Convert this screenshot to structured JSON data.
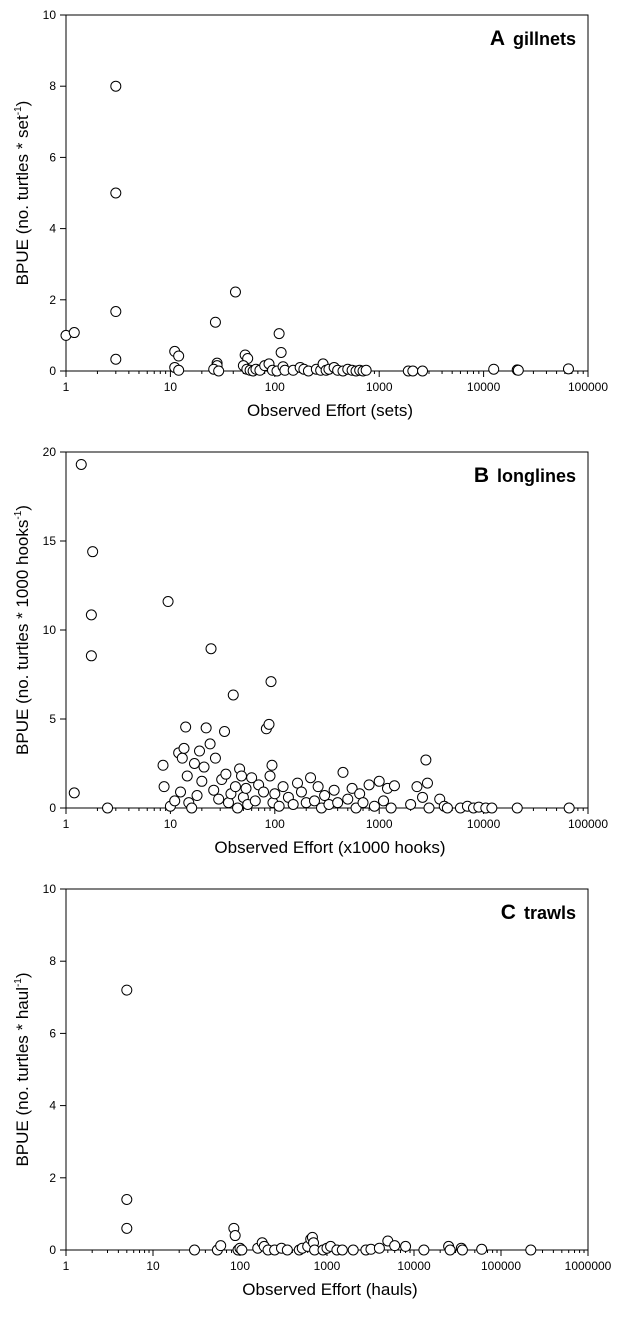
{
  "chart_data": [
    {
      "type": "scatter",
      "panel_label": "A",
      "title": "gillnets",
      "xlabel": "Observed Effort (sets)",
      "ylabel": "BPUE (no. turtles * set",
      "ylabel_superscript": "-1",
      "ylabel_close": ")",
      "x_scale": "log",
      "xlim": [
        1,
        100000
      ],
      "ylim": [
        0,
        10
      ],
      "x_ticks": [
        1,
        10,
        100,
        1000,
        10000,
        100000
      ],
      "x_tick_labels": [
        "1",
        "10",
        "100",
        "1000",
        "10000",
        "100000"
      ],
      "y_ticks": [
        0,
        2,
        4,
        6,
        8,
        10
      ],
      "y_tick_labels": [
        "0",
        "2",
        "4",
        "6",
        "8",
        "10"
      ],
      "grid": false,
      "legend": "none",
      "points": [
        [
          1,
          1.0
        ],
        [
          1.2,
          1.08
        ],
        [
          3,
          8.0
        ],
        [
          3,
          5.0
        ],
        [
          3,
          1.67
        ],
        [
          3,
          0.33
        ],
        [
          11,
          0.55
        ],
        [
          12,
          0.42
        ],
        [
          11,
          0.1
        ],
        [
          12,
          0.02
        ],
        [
          27,
          1.37
        ],
        [
          28,
          0.22
        ],
        [
          28,
          0.15
        ],
        [
          26,
          0.05
        ],
        [
          29,
          0.0
        ],
        [
          42,
          2.22
        ],
        [
          52,
          0.45
        ],
        [
          55,
          0.35
        ],
        [
          50,
          0.15
        ],
        [
          54,
          0.05
        ],
        [
          58,
          0.02
        ],
        [
          62,
          0.0
        ],
        [
          66,
          0.05
        ],
        [
          72,
          0.02
        ],
        [
          80,
          0.15
        ],
        [
          88,
          0.2
        ],
        [
          95,
          0.02
        ],
        [
          105,
          0.0
        ],
        [
          110,
          1.05
        ],
        [
          115,
          0.52
        ],
        [
          120,
          0.12
        ],
        [
          125,
          0.02
        ],
        [
          150,
          0.02
        ],
        [
          175,
          0.1
        ],
        [
          190,
          0.05
        ],
        [
          210,
          0.0
        ],
        [
          250,
          0.05
        ],
        [
          275,
          0.02
        ],
        [
          290,
          0.2
        ],
        [
          310,
          0.02
        ],
        [
          330,
          0.05
        ],
        [
          370,
          0.1
        ],
        [
          400,
          0.02
        ],
        [
          450,
          0.0
        ],
        [
          500,
          0.05
        ],
        [
          550,
          0.02
        ],
        [
          600,
          0.0
        ],
        [
          650,
          0.02
        ],
        [
          700,
          0.0
        ],
        [
          750,
          0.02
        ],
        [
          1900,
          0.0
        ],
        [
          2100,
          0.0
        ],
        [
          2600,
          0.0
        ],
        [
          12500,
          0.05
        ],
        [
          21000,
          0.03
        ],
        [
          21500,
          0.02
        ],
        [
          65000,
          0.06
        ]
      ]
    },
    {
      "type": "scatter",
      "panel_label": "B",
      "title": "longlines",
      "xlabel": "Observed Effort (x1000 hooks)",
      "ylabel": "BPUE (no. turtles * 1000 hooks",
      "ylabel_superscript": "-1",
      "ylabel_close": ")",
      "x_scale": "log",
      "xlim": [
        1,
        100000
      ],
      "ylim": [
        0,
        20
      ],
      "x_ticks": [
        1,
        10,
        100,
        1000,
        10000,
        100000
      ],
      "x_tick_labels": [
        "1",
        "10",
        "100",
        "1000",
        "10000",
        "100000"
      ],
      "y_ticks": [
        0,
        5,
        10,
        15,
        20
      ],
      "y_tick_labels": [
        "0",
        "5",
        "10",
        "15",
        "20"
      ],
      "grid": false,
      "legend": "none",
      "points": [
        [
          1.2,
          0.85
        ],
        [
          1.4,
          19.3
        ],
        [
          1.8,
          14.4
        ],
        [
          1.75,
          10.85
        ],
        [
          1.75,
          8.55
        ],
        [
          2.5,
          0.0
        ],
        [
          8.5,
          2.4
        ],
        [
          8.7,
          1.2
        ],
        [
          9.5,
          11.6
        ],
        [
          10,
          0.1
        ],
        [
          11,
          0.4
        ],
        [
          12,
          3.1
        ],
        [
          12.5,
          0.9
        ],
        [
          13,
          2.8
        ],
        [
          13.5,
          3.35
        ],
        [
          14,
          4.55
        ],
        [
          14.5,
          1.8
        ],
        [
          15,
          0.3
        ],
        [
          16,
          0.0
        ],
        [
          17,
          2.5
        ],
        [
          18,
          0.7
        ],
        [
          19,
          3.2
        ],
        [
          20,
          1.5
        ],
        [
          21,
          2.3
        ],
        [
          22,
          4.5
        ],
        [
          24,
          3.6
        ],
        [
          24.5,
          8.95
        ],
        [
          26,
          1.0
        ],
        [
          27,
          2.8
        ],
        [
          29,
          0.5
        ],
        [
          31,
          1.6
        ],
        [
          33,
          4.3
        ],
        [
          34,
          1.9
        ],
        [
          36,
          0.3
        ],
        [
          38,
          0.8
        ],
        [
          40,
          6.35
        ],
        [
          42,
          1.2
        ],
        [
          44,
          0.0
        ],
        [
          46,
          2.2
        ],
        [
          48,
          1.8
        ],
        [
          50,
          0.6
        ],
        [
          53,
          1.1
        ],
        [
          55,
          0.2
        ],
        [
          60,
          1.7
        ],
        [
          65,
          0.4
        ],
        [
          70,
          1.3
        ],
        [
          78,
          0.9
        ],
        [
          83,
          4.45
        ],
        [
          88,
          4.7
        ],
        [
          90,
          1.8
        ],
        [
          92,
          7.1
        ],
        [
          94,
          2.4
        ],
        [
          96,
          0.3
        ],
        [
          100,
          0.8
        ],
        [
          110,
          0.1
        ],
        [
          120,
          1.2
        ],
        [
          135,
          0.6
        ],
        [
          150,
          0.2
        ],
        [
          165,
          1.4
        ],
        [
          180,
          0.9
        ],
        [
          200,
          0.3
        ],
        [
          220,
          1.7
        ],
        [
          240,
          0.4
        ],
        [
          260,
          1.2
        ],
        [
          280,
          0.0
        ],
        [
          300,
          0.7
        ],
        [
          330,
          0.2
        ],
        [
          370,
          1.0
        ],
        [
          400,
          0.3
        ],
        [
          450,
          2.0
        ],
        [
          500,
          0.5
        ],
        [
          550,
          1.1
        ],
        [
          600,
          0.0
        ],
        [
          650,
          0.8
        ],
        [
          700,
          0.3
        ],
        [
          800,
          1.3
        ],
        [
          900,
          0.1
        ],
        [
          1000,
          1.5
        ],
        [
          1100,
          0.4
        ],
        [
          1200,
          1.1
        ],
        [
          1300,
          0.0
        ],
        [
          1400,
          1.25
        ],
        [
          2000,
          0.2
        ],
        [
          2300,
          1.2
        ],
        [
          2600,
          0.6
        ],
        [
          2800,
          2.7
        ],
        [
          2900,
          1.4
        ],
        [
          3000,
          0.0
        ],
        [
          3800,
          0.5
        ],
        [
          4200,
          0.1
        ],
        [
          4500,
          0.0
        ],
        [
          6000,
          0.0
        ],
        [
          7000,
          0.1
        ],
        [
          8000,
          0.0
        ],
        [
          9000,
          0.05
        ],
        [
          10500,
          0.0
        ],
        [
          12000,
          0.0
        ],
        [
          21000,
          0.0
        ],
        [
          66000,
          0.0
        ]
      ]
    },
    {
      "type": "scatter",
      "panel_label": "C",
      "title": "trawls",
      "xlabel": "Observed Effort (hauls)",
      "ylabel": "BPUE (no. turtles * haul",
      "ylabel_superscript": "-1",
      "ylabel_close": ")",
      "x_scale": "log",
      "xlim": [
        1,
        1000000
      ],
      "ylim": [
        0,
        10
      ],
      "x_ticks": [
        1,
        10,
        100,
        1000,
        10000,
        100000,
        1000000
      ],
      "x_tick_labels": [
        "1",
        "10",
        "100",
        "1000",
        "10000",
        "100000",
        "1000000"
      ],
      "y_ticks": [
        0,
        2,
        4,
        6,
        8,
        10
      ],
      "y_tick_labels": [
        "0",
        "2",
        "4",
        "6",
        "8",
        "10"
      ],
      "grid": false,
      "legend": "none",
      "points": [
        [
          5,
          7.2
        ],
        [
          5,
          1.4
        ],
        [
          5,
          0.6
        ],
        [
          30,
          0.0
        ],
        [
          55,
          0.0
        ],
        [
          60,
          0.12
        ],
        [
          85,
          0.6
        ],
        [
          88,
          0.4
        ],
        [
          95,
          0.0
        ],
        [
          100,
          0.05
        ],
        [
          105,
          0.0
        ],
        [
          160,
          0.05
        ],
        [
          180,
          0.2
        ],
        [
          190,
          0.1
        ],
        [
          210,
          0.0
        ],
        [
          250,
          0.0
        ],
        [
          300,
          0.05
        ],
        [
          350,
          0.0
        ],
        [
          480,
          0.0
        ],
        [
          520,
          0.05
        ],
        [
          600,
          0.1
        ],
        [
          650,
          0.3
        ],
        [
          680,
          0.35
        ],
        [
          700,
          0.2
        ],
        [
          720,
          0.0
        ],
        [
          900,
          0.0
        ],
        [
          1000,
          0.05
        ],
        [
          1100,
          0.1
        ],
        [
          1300,
          0.0
        ],
        [
          1500,
          0.0
        ],
        [
          2000,
          0.0
        ],
        [
          2800,
          0.0
        ],
        [
          3200,
          0.02
        ],
        [
          4000,
          0.05
        ],
        [
          5000,
          0.25
        ],
        [
          6000,
          0.12
        ],
        [
          8000,
          0.1
        ],
        [
          13000,
          0.0
        ],
        [
          25000,
          0.1
        ],
        [
          26000,
          0.0
        ],
        [
          35000,
          0.05
        ],
        [
          36000,
          0.0
        ],
        [
          60000,
          0.02
        ],
        [
          220000,
          0.0
        ]
      ]
    }
  ]
}
